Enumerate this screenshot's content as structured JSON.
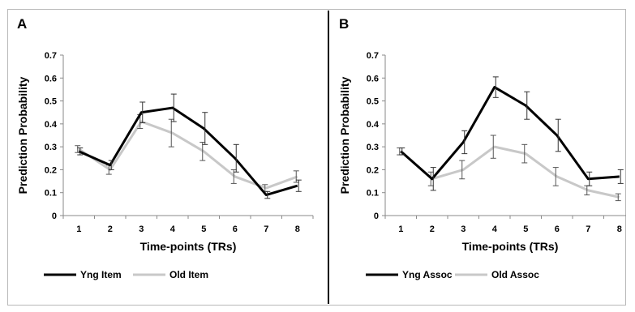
{
  "chart_data": [
    {
      "type": "line",
      "panel_label": "A",
      "title": "",
      "xlabel": "Time-points (TRs)",
      "ylabel": "Prediction Probability",
      "categories": [
        "1",
        "2",
        "3",
        "4",
        "5",
        "6",
        "7",
        "8"
      ],
      "yticks": [
        "0",
        "0.1",
        "0.2",
        "0.3",
        "0.4",
        "0.5",
        "0.6",
        "0.7"
      ],
      "ylim": [
        0,
        0.7
      ],
      "grid": false,
      "legend": "bottom",
      "series": [
        {
          "name": "Yng Item",
          "color": "#000000",
          "values": [
            0.28,
            0.22,
            0.45,
            0.47,
            0.38,
            0.25,
            0.09,
            0.13
          ],
          "errors": [
            0.015,
            0.02,
            0.045,
            0.06,
            0.07,
            0.06,
            0.015,
            0.025
          ]
        },
        {
          "name": "Old Item",
          "color": "#c8c8c8",
          "values": [
            0.29,
            0.2,
            0.41,
            0.36,
            0.28,
            0.17,
            0.12,
            0.17
          ],
          "errors": [
            0.015,
            0.02,
            0.03,
            0.06,
            0.04,
            0.03,
            0.015,
            0.025
          ]
        }
      ]
    },
    {
      "type": "line",
      "panel_label": "B",
      "title": "",
      "xlabel": "Time-points (TRs)",
      "ylabel": "Prediction Probability",
      "categories": [
        "1",
        "2",
        "3",
        "4",
        "5",
        "6",
        "7",
        "8"
      ],
      "yticks": [
        "0",
        "0.1",
        "0.2",
        "0.3",
        "0.4",
        "0.5",
        "0.6",
        "0.7"
      ],
      "ylim": [
        0,
        0.7
      ],
      "grid": false,
      "legend": "bottom",
      "series": [
        {
          "name": "Yng Assoc",
          "color": "#000000",
          "values": [
            0.28,
            0.16,
            0.32,
            0.56,
            0.48,
            0.35,
            0.16,
            0.17
          ],
          "errors": [
            0.015,
            0.05,
            0.05,
            0.045,
            0.06,
            0.07,
            0.03,
            0.03
          ]
        },
        {
          "name": "Old Assoc",
          "color": "#c8c8c8",
          "values": [
            0.28,
            0.16,
            0.2,
            0.3,
            0.27,
            0.17,
            0.11,
            0.08
          ],
          "errors": [
            0.015,
            0.03,
            0.04,
            0.05,
            0.04,
            0.04,
            0.02,
            0.015
          ]
        }
      ]
    }
  ]
}
